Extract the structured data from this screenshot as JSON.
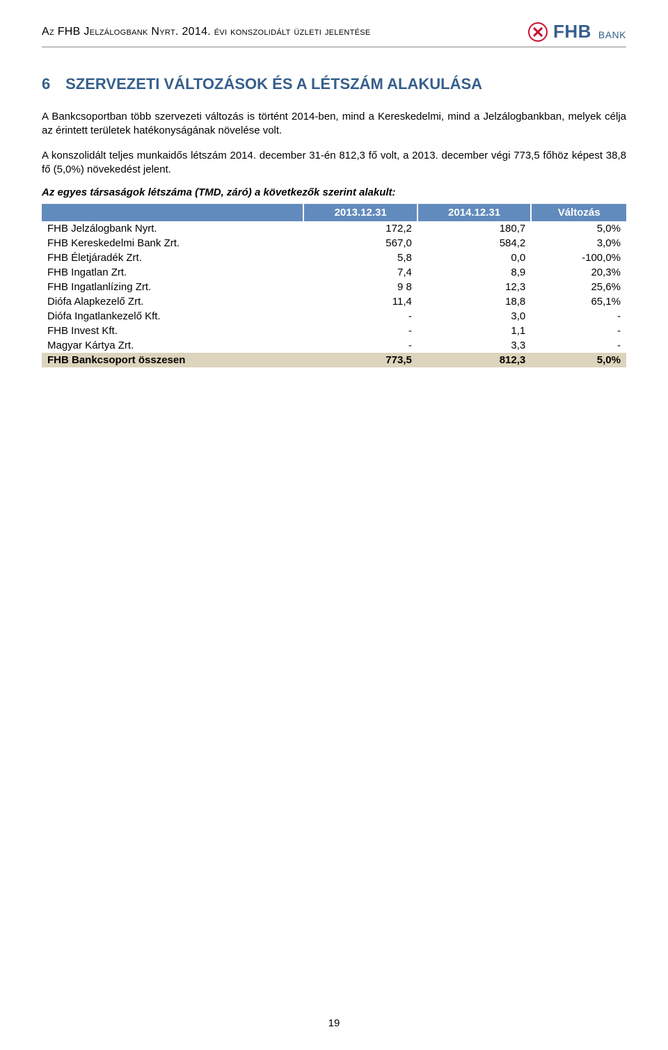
{
  "header": {
    "doc_title": "Az FHB Jelzálogbank Nyrt. 2014. évi konszolidált üzleti jelentése",
    "logo_text": "FHB",
    "logo_sub": "BANK"
  },
  "section": {
    "number": "6",
    "title": "SZERVEZETI VÁLTOZÁSOK ÉS A LÉTSZÁM ALAKULÁSA"
  },
  "paragraphs": {
    "p1": "A Bankcsoportban több szervezeti változás is történt 2014-ben, mind a Kereskedelmi, mind a Jelzálogbankban, melyek célja az érintett területek hatékonyságának növelése volt.",
    "p2": "A konszolidált teljes munkaidős létszám 2014. december 31-én 812,3 fő volt, a 2013. december végi 773,5 főhöz képest 38,8 fő (5,0%) növekedést jelent."
  },
  "subheading": "Az egyes társaságok létszáma (TMD, záró) a következők szerint alakult:",
  "table": {
    "header_bg": "#628bbd",
    "header_fg": "#ffffff",
    "total_bg": "#dcd4bc",
    "columns": [
      "",
      "2013.12.31",
      "2014.12.31",
      "Változás"
    ],
    "rows": [
      {
        "label": "FHB Jelzálogbank Nyrt.",
        "c1": "172,2",
        "c2": "180,7",
        "c3": "5,0%"
      },
      {
        "label": "FHB Kereskedelmi Bank Zrt.",
        "c1": "567,0",
        "c2": "584,2",
        "c3": "3,0%"
      },
      {
        "label": "FHB Életjáradék Zrt.",
        "c1": "5,8",
        "c2": "0,0",
        "c3": "-100,0%"
      },
      {
        "label": "FHB Ingatlan Zrt.",
        "c1": "7,4",
        "c2": "8,9",
        "c3": "20,3%"
      },
      {
        "label": "FHB Ingatlanlízing Zrt.",
        "c1": "9 8",
        "c2": "12,3",
        "c3": "25,6%"
      },
      {
        "label": "Diófa Alapkezelő Zrt.",
        "c1": "11,4",
        "c2": "18,8",
        "c3": "65,1%"
      },
      {
        "label": "Diófa Ingatlankezelő Kft.",
        "c1": "-",
        "c2": "3,0",
        "c3": "-"
      },
      {
        "label": "FHB Invest Kft.",
        "c1": "-",
        "c2": "1,1",
        "c3": "-"
      },
      {
        "label": "Magyar Kártya Zrt.",
        "c1": "-",
        "c2": "3,3",
        "c3": "-"
      }
    ],
    "total": {
      "label": "FHB Bankcsoport összesen",
      "c1": "773,5",
      "c2": "812,3",
      "c3": "5,0%"
    }
  },
  "page_number": "19"
}
